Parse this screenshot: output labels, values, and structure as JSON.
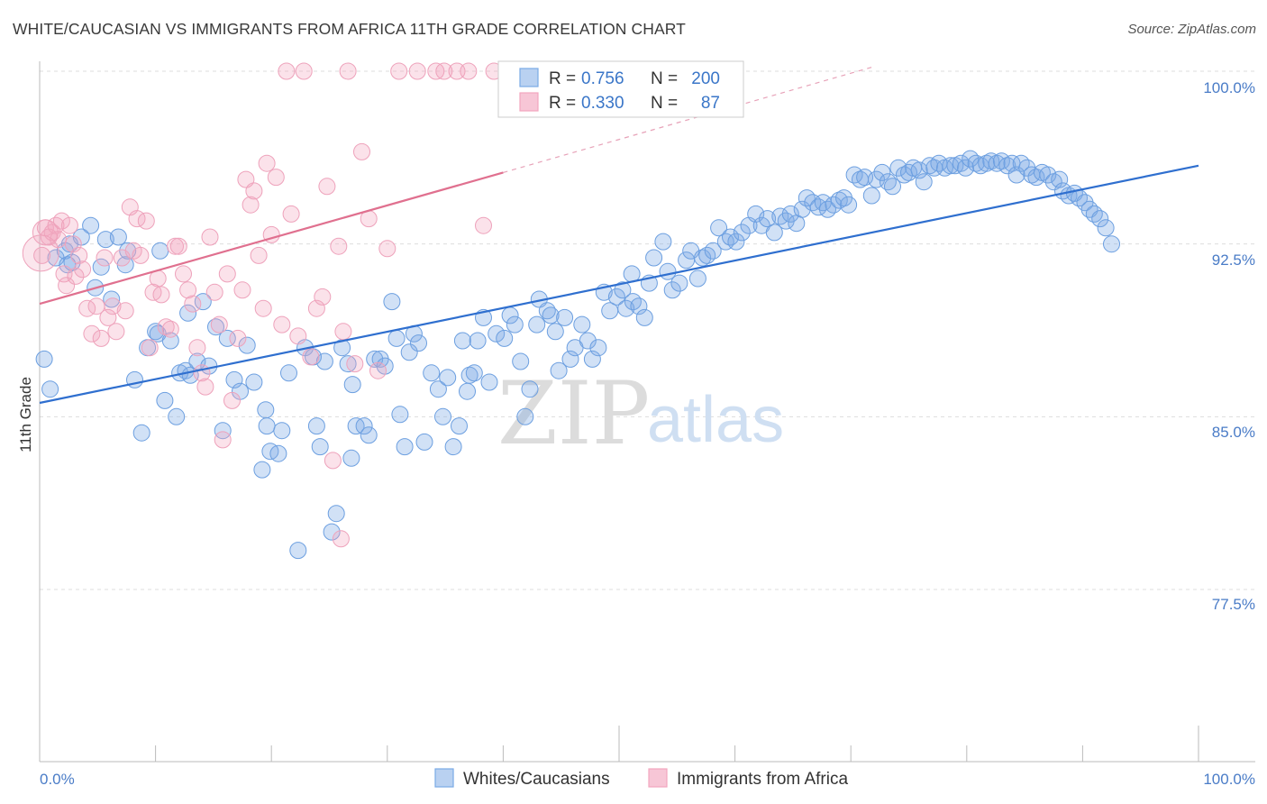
{
  "title": "WHITE/CAUCASIAN VS IMMIGRANTS FROM AFRICA 11TH GRADE CORRELATION CHART",
  "source": "Source: ZipAtlas.com",
  "watermark": {
    "zip": "ZIP",
    "atlas": "atlas"
  },
  "legend_box": {
    "rows": [
      {
        "r_label": "R =",
        "r_value": "0.756",
        "n_label": "N =",
        "n_value": "200"
      },
      {
        "r_label": "R =",
        "r_value": "0.330",
        "n_label": "N =",
        "n_value": "87"
      }
    ]
  },
  "chart_data": {
    "type": "scatter",
    "title": "WHITE/CAUCASIAN VS IMMIGRANTS FROM AFRICA 11TH GRADE CORRELATION CHART",
    "xlabel": "",
    "ylabel": "11th Grade",
    "xlim": [
      0,
      100
    ],
    "ylim": [
      70.0,
      101.0
    ],
    "x_tick_labels": [
      "0.0%",
      "100.0%"
    ],
    "y_ticks": [
      100.0,
      92.5,
      85.0,
      77.5
    ],
    "y_tick_labels": [
      "100.0%",
      "92.5%",
      "85.0%",
      "77.5%"
    ],
    "grid": true,
    "legend_position": "bottom",
    "series": [
      {
        "name": "Whites/Caucasians",
        "color": "#7aaae6",
        "line_color": "#2f6fcf",
        "r": 0.756,
        "n": 200,
        "trend": {
          "x": [
            0,
            100
          ],
          "y": [
            85.6,
            95.9
          ]
        },
        "points": [
          [
            0.4,
            87.5
          ],
          [
            0.9,
            86.2
          ],
          [
            1.4,
            91.9
          ],
          [
            2.2,
            92.2
          ],
          [
            2.4,
            91.6
          ],
          [
            2.6,
            92.5
          ],
          [
            3.6,
            92.8
          ],
          [
            4.4,
            93.3
          ],
          [
            4.8,
            90.6
          ],
          [
            5.3,
            91.5
          ],
          [
            5.7,
            92.7
          ],
          [
            6.2,
            90.1
          ],
          [
            7.4,
            91.6
          ],
          [
            7.6,
            92.2
          ],
          [
            8.2,
            86.6
          ],
          [
            8.8,
            84.3
          ],
          [
            9.3,
            88.0
          ],
          [
            10.0,
            88.7
          ],
          [
            10.2,
            88.6
          ],
          [
            10.4,
            92.2
          ],
          [
            10.8,
            85.7
          ],
          [
            11.3,
            88.3
          ],
          [
            11.8,
            85.0
          ],
          [
            12.1,
            86.9
          ],
          [
            12.6,
            87.0
          ],
          [
            13.0,
            86.8
          ],
          [
            13.6,
            87.4
          ],
          [
            14.1,
            90.0
          ],
          [
            14.6,
            87.2
          ],
          [
            15.2,
            88.9
          ],
          [
            15.8,
            84.4
          ],
          [
            16.2,
            88.4
          ],
          [
            16.8,
            86.6
          ],
          [
            17.3,
            86.1
          ],
          [
            17.9,
            88.1
          ],
          [
            18.5,
            86.5
          ],
          [
            19.2,
            82.7
          ],
          [
            19.6,
            84.6
          ],
          [
            19.9,
            83.5
          ],
          [
            20.6,
            83.4
          ],
          [
            20.9,
            84.4
          ],
          [
            21.5,
            86.9
          ],
          [
            22.3,
            79.2
          ],
          [
            22.9,
            88.0
          ],
          [
            23.6,
            87.6
          ],
          [
            23.9,
            84.6
          ],
          [
            24.2,
            83.7
          ],
          [
            24.6,
            87.4
          ],
          [
            25.2,
            80.0
          ],
          [
            25.6,
            80.8
          ],
          [
            26.1,
            88.0
          ],
          [
            26.6,
            87.3
          ],
          [
            27.0,
            86.4
          ],
          [
            27.3,
            84.6
          ],
          [
            28.0,
            84.6
          ],
          [
            28.4,
            84.2
          ],
          [
            28.9,
            87.5
          ],
          [
            29.4,
            87.5
          ],
          [
            29.8,
            87.2
          ],
          [
            30.4,
            90.0
          ],
          [
            30.8,
            88.4
          ],
          [
            31.1,
            85.1
          ],
          [
            31.5,
            83.7
          ],
          [
            32.3,
            88.6
          ],
          [
            32.7,
            88.2
          ],
          [
            33.2,
            83.9
          ],
          [
            33.8,
            86.9
          ],
          [
            34.4,
            86.2
          ],
          [
            34.8,
            85.0
          ],
          [
            35.2,
            86.7
          ],
          [
            35.7,
            83.7
          ],
          [
            36.2,
            84.6
          ],
          [
            36.5,
            88.3
          ],
          [
            37.1,
            86.8
          ],
          [
            37.5,
            86.9
          ],
          [
            37.8,
            88.3
          ],
          [
            38.3,
            89.3
          ],
          [
            38.8,
            86.5
          ],
          [
            39.4,
            88.6
          ],
          [
            40.1,
            88.4
          ],
          [
            40.6,
            89.4
          ],
          [
            41.0,
            89.0
          ],
          [
            41.5,
            87.4
          ],
          [
            41.9,
            85.0
          ],
          [
            42.3,
            86.2
          ],
          [
            42.9,
            89.0
          ],
          [
            43.1,
            90.1
          ],
          [
            43.8,
            89.6
          ],
          [
            44.1,
            89.4
          ],
          [
            44.8,
            87.0
          ],
          [
            45.3,
            89.3
          ],
          [
            45.8,
            87.5
          ],
          [
            46.2,
            88.0
          ],
          [
            46.8,
            89.0
          ],
          [
            47.3,
            88.3
          ],
          [
            47.7,
            87.5
          ],
          [
            48.2,
            88.0
          ],
          [
            48.7,
            90.4
          ],
          [
            49.2,
            89.6
          ],
          [
            49.8,
            90.2
          ],
          [
            50.3,
            90.5
          ],
          [
            50.6,
            89.7
          ],
          [
            51.2,
            90.0
          ],
          [
            51.7,
            89.8
          ],
          [
            52.2,
            89.3
          ],
          [
            52.6,
            90.8
          ],
          [
            53.0,
            91.9
          ],
          [
            53.8,
            92.6
          ],
          [
            54.2,
            91.3
          ],
          [
            54.6,
            90.5
          ],
          [
            55.2,
            90.8
          ],
          [
            55.8,
            91.8
          ],
          [
            56.2,
            92.2
          ],
          [
            56.8,
            91.0
          ],
          [
            57.2,
            91.9
          ],
          [
            57.6,
            92.0
          ],
          [
            58.1,
            92.2
          ],
          [
            58.6,
            93.2
          ],
          [
            59.2,
            92.6
          ],
          [
            59.6,
            92.8
          ],
          [
            60.1,
            92.6
          ],
          [
            60.6,
            93.0
          ],
          [
            61.2,
            93.3
          ],
          [
            61.8,
            93.8
          ],
          [
            62.3,
            93.3
          ],
          [
            62.8,
            93.6
          ],
          [
            63.4,
            93.0
          ],
          [
            63.9,
            93.7
          ],
          [
            64.4,
            93.5
          ],
          [
            64.8,
            93.8
          ],
          [
            65.3,
            93.4
          ],
          [
            65.8,
            94.0
          ],
          [
            66.2,
            94.5
          ],
          [
            66.7,
            94.3
          ],
          [
            67.2,
            94.1
          ],
          [
            67.6,
            94.3
          ],
          [
            68.0,
            94.0
          ],
          [
            68.5,
            94.2
          ],
          [
            69.0,
            94.4
          ],
          [
            69.4,
            94.5
          ],
          [
            69.8,
            94.2
          ],
          [
            70.3,
            95.5
          ],
          [
            70.8,
            95.3
          ],
          [
            71.2,
            95.4
          ],
          [
            71.8,
            94.6
          ],
          [
            72.2,
            95.3
          ],
          [
            72.7,
            95.6
          ],
          [
            73.2,
            95.2
          ],
          [
            73.6,
            95.0
          ],
          [
            74.1,
            95.8
          ],
          [
            74.6,
            95.5
          ],
          [
            75.0,
            95.6
          ],
          [
            75.4,
            95.8
          ],
          [
            75.9,
            95.7
          ],
          [
            76.3,
            95.2
          ],
          [
            76.8,
            95.9
          ],
          [
            77.2,
            95.8
          ],
          [
            77.6,
            96.0
          ],
          [
            78.1,
            95.8
          ],
          [
            78.6,
            95.9
          ],
          [
            79.0,
            95.9
          ],
          [
            79.5,
            96.0
          ],
          [
            79.9,
            95.8
          ],
          [
            80.3,
            96.2
          ],
          [
            80.8,
            96.0
          ],
          [
            81.2,
            95.9
          ],
          [
            81.7,
            96.0
          ],
          [
            82.1,
            96.1
          ],
          [
            82.6,
            96.0
          ],
          [
            83.0,
            96.1
          ],
          [
            83.5,
            95.9
          ],
          [
            83.9,
            96.0
          ],
          [
            84.3,
            95.5
          ],
          [
            84.7,
            96.0
          ],
          [
            85.2,
            95.8
          ],
          [
            85.6,
            95.5
          ],
          [
            86.0,
            95.4
          ],
          [
            86.5,
            95.6
          ],
          [
            87.0,
            95.5
          ],
          [
            87.5,
            95.2
          ],
          [
            88.0,
            95.3
          ],
          [
            88.3,
            94.8
          ],
          [
            88.8,
            94.6
          ],
          [
            89.3,
            94.7
          ],
          [
            89.7,
            94.5
          ],
          [
            90.2,
            94.3
          ],
          [
            90.6,
            94.0
          ],
          [
            91.0,
            93.8
          ],
          [
            91.5,
            93.6
          ],
          [
            92.0,
            93.2
          ],
          [
            92.5,
            92.5
          ],
          [
            2.8,
            91.7
          ],
          [
            6.8,
            92.8
          ],
          [
            12.8,
            89.5
          ],
          [
            19.5,
            85.3
          ],
          [
            26.9,
            83.2
          ],
          [
            31.9,
            87.8
          ],
          [
            36.9,
            86.1
          ],
          [
            44.5,
            88.7
          ],
          [
            51.1,
            91.2
          ]
        ]
      },
      {
        "name": "Immigrants from Africa",
        "color": "#f2a6bf",
        "line_color": "#e0708f",
        "r": 0.33,
        "n": 87,
        "trend": {
          "x": [
            0,
            40
          ],
          "y": [
            89.9,
            95.6
          ]
        },
        "trend_extension": {
          "x": [
            40,
            72
          ],
          "y": [
            95.6,
            100.2
          ]
        },
        "points": [
          [
            0.2,
            92.0
          ],
          [
            0.5,
            93.2
          ],
          [
            0.8,
            92.8
          ],
          [
            1.1,
            93.0
          ],
          [
            1.4,
            93.3
          ],
          [
            1.6,
            92.7
          ],
          [
            1.9,
            93.5
          ],
          [
            2.1,
            91.2
          ],
          [
            2.3,
            90.7
          ],
          [
            2.6,
            93.3
          ],
          [
            2.9,
            92.5
          ],
          [
            3.1,
            91.1
          ],
          [
            3.4,
            92.0
          ],
          [
            3.7,
            91.4
          ],
          [
            4.1,
            89.7
          ],
          [
            4.5,
            88.6
          ],
          [
            4.9,
            89.8
          ],
          [
            5.3,
            88.4
          ],
          [
            5.6,
            91.9
          ],
          [
            5.9,
            89.3
          ],
          [
            6.3,
            89.8
          ],
          [
            6.6,
            88.7
          ],
          [
            7.1,
            91.9
          ],
          [
            7.4,
            89.6
          ],
          [
            7.8,
            94.1
          ],
          [
            8.1,
            92.2
          ],
          [
            8.4,
            93.6
          ],
          [
            8.7,
            92.0
          ],
          [
            9.2,
            93.5
          ],
          [
            9.5,
            88.0
          ],
          [
            9.8,
            90.4
          ],
          [
            10.2,
            91.0
          ],
          [
            10.5,
            90.3
          ],
          [
            10.9,
            88.9
          ],
          [
            11.3,
            88.8
          ],
          [
            11.7,
            92.4
          ],
          [
            12.0,
            92.4
          ],
          [
            12.4,
            91.2
          ],
          [
            12.8,
            90.5
          ],
          [
            13.2,
            89.9
          ],
          [
            13.6,
            88.0
          ],
          [
            14.0,
            86.9
          ],
          [
            14.3,
            86.3
          ],
          [
            14.7,
            92.8
          ],
          [
            15.1,
            90.4
          ],
          [
            15.5,
            89.0
          ],
          [
            15.8,
            84.0
          ],
          [
            16.2,
            91.2
          ],
          [
            16.6,
            85.7
          ],
          [
            17.1,
            88.4
          ],
          [
            17.5,
            90.5
          ],
          [
            17.8,
            95.3
          ],
          [
            18.2,
            94.2
          ],
          [
            18.5,
            94.8
          ],
          [
            18.9,
            92.0
          ],
          [
            19.3,
            89.7
          ],
          [
            19.6,
            96.0
          ],
          [
            20.0,
            92.9
          ],
          [
            20.4,
            95.4
          ],
          [
            20.9,
            89.0
          ],
          [
            21.3,
            100.0
          ],
          [
            21.7,
            93.8
          ],
          [
            22.3,
            88.5
          ],
          [
            22.8,
            100.0
          ],
          [
            23.4,
            87.6
          ],
          [
            23.9,
            89.7
          ],
          [
            24.4,
            90.2
          ],
          [
            24.8,
            95.0
          ],
          [
            25.3,
            83.1
          ],
          [
            25.8,
            92.4
          ],
          [
            26.2,
            88.7
          ],
          [
            26.6,
            100.0
          ],
          [
            27.2,
            87.3
          ],
          [
            27.8,
            96.5
          ],
          [
            28.4,
            93.6
          ],
          [
            29.2,
            87.0
          ],
          [
            30.0,
            92.3
          ],
          [
            31.0,
            100.0
          ],
          [
            32.6,
            100.0
          ],
          [
            34.2,
            100.0
          ],
          [
            34.9,
            100.0
          ],
          [
            36.0,
            100.0
          ],
          [
            37.0,
            100.0
          ],
          [
            38.3,
            93.3
          ],
          [
            39.2,
            100.0
          ],
          [
            40.6,
            100.0
          ],
          [
            26.0,
            79.7
          ]
        ]
      }
    ]
  },
  "bottom_legend": [
    {
      "label": "Whites/Caucasians",
      "color": "#7aaae6"
    },
    {
      "label": "Immigrants from Africa",
      "color": "#f2a6bf"
    }
  ]
}
